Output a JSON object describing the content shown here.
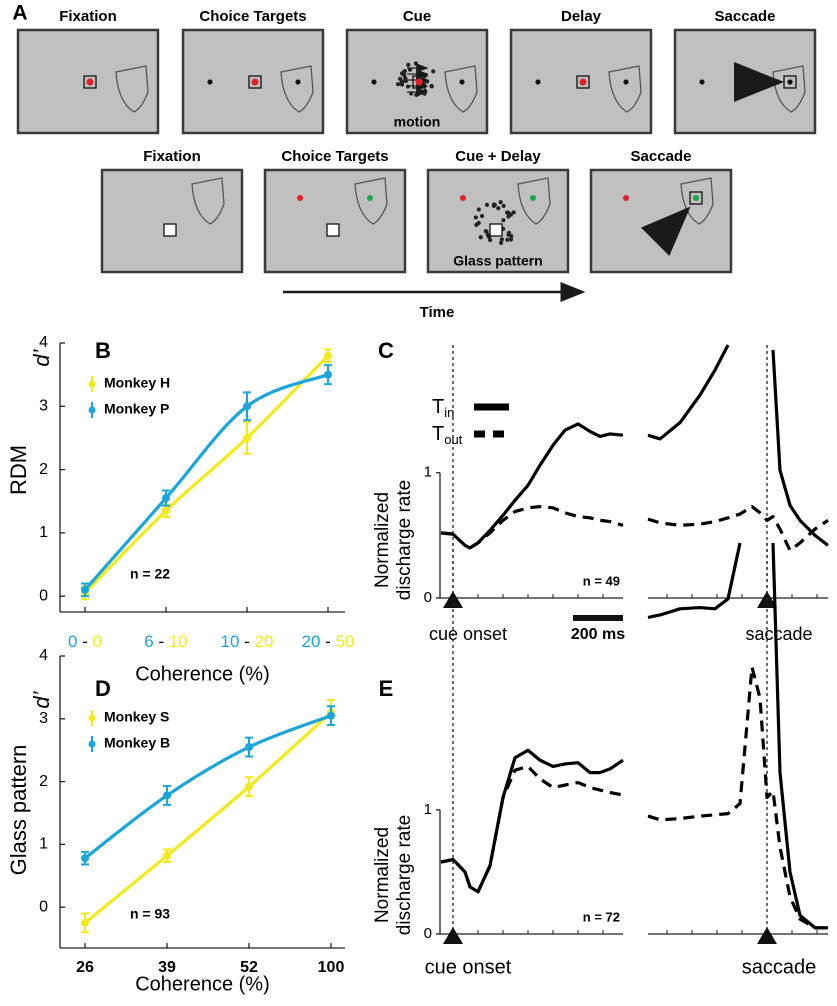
{
  "panel_a": {
    "label": "A",
    "rows": [
      {
        "screens": [
          {
            "title": "Fixation"
          },
          {
            "title": "Choice Targets"
          },
          {
            "title": "Cue",
            "caption": "motion"
          },
          {
            "title": "Delay"
          },
          {
            "title": "Saccade"
          }
        ]
      },
      {
        "screens": [
          {
            "title": "Fixation"
          },
          {
            "title": "Choice Targets"
          },
          {
            "title": "Cue + Delay",
            "caption": "Glass pattern"
          },
          {
            "title": "Saccade"
          }
        ]
      }
    ],
    "time_label": "Time"
  },
  "chart_data": [
    {
      "type": "line",
      "panel": "B",
      "ylabel": "RDM",
      "ylabel_symbol": "d’",
      "xlabel": "Coherence (%)",
      "annotation": "n = 22",
      "category_separator": "-",
      "ylim": [
        -0.25,
        4.0
      ],
      "yticks": [
        0,
        1,
        2,
        3,
        4
      ],
      "series": [
        {
          "name": "Monkey H",
          "color": "#f2ea1f",
          "categories": [
            "0",
            "10",
            "20",
            "50"
          ],
          "values": [
            0.05,
            1.35,
            2.5,
            3.8
          ],
          "errors": [
            0.1,
            0.1,
            0.25,
            0.1
          ]
        },
        {
          "name": "Monkey P",
          "color": "#1ba5dd",
          "categories": [
            "0",
            "6",
            "10",
            "20"
          ],
          "values": [
            0.1,
            1.55,
            3.0,
            3.5
          ],
          "errors": [
            0.1,
            0.12,
            0.22,
            0.15
          ]
        }
      ]
    },
    {
      "type": "trace",
      "panel": "C",
      "ylabel": [
        "Normalized",
        "discharge rate"
      ],
      "annotation": "n = 49",
      "legend": true,
      "ylim": [
        0,
        2.02
      ],
      "yticks": [
        0,
        1
      ],
      "scalebar": {
        "value": 200,
        "label": "200 ms"
      },
      "series": [
        {
          "name": "T",
          "subscript": "in",
          "color": "#000000",
          "dashed": false
        },
        {
          "name": "T",
          "subscript": "out",
          "color": "#000000",
          "dashed": true
        }
      ],
      "segments": [
        {
          "event": "cue onset",
          "xlim": [
            -52,
            680
          ],
          "x": [
            -48,
            0,
            48,
            68,
            100,
            148,
            200,
            248,
            300,
            348,
            400,
            448,
            500,
            548,
            588,
            628,
            680
          ],
          "values": [
            [
              0.52,
              0.51,
              0.42,
              0.4,
              0.44,
              0.54,
              0.66,
              0.78,
              0.9,
              1.06,
              1.22,
              1.34,
              1.39,
              1.33,
              1.29,
              1.31,
              1.3
            ],
            [
              0.52,
              0.51,
              0.42,
              0.4,
              0.44,
              0.52,
              0.62,
              0.69,
              0.72,
              0.73,
              0.72,
              0.68,
              0.65,
              0.64,
              0.62,
              0.61,
              0.58
            ]
          ]
        },
        {
          "event": "saccade",
          "xlim": [
            -476,
            244
          ],
          "x": [
            -476,
            -428,
            -348,
            -268,
            -208,
            -156,
            -108,
            -60,
            -28,
            0,
            24,
            52,
            92,
            132,
            192,
            244
          ],
          "values": [
            [
              1.3,
              1.27,
              1.4,
              1.62,
              1.82,
              2.02,
              null,
              null,
              null,
              null,
              1.98,
              1.02,
              0.74,
              0.62,
              0.5,
              0.42
            ],
            [
              0.63,
              0.6,
              0.58,
              0.59,
              0.61,
              0.64,
              0.67,
              0.73,
              0.68,
              0.62,
              0.65,
              0.55,
              0.38,
              0.44,
              0.55,
              0.62
            ]
          ]
        }
      ]
    },
    {
      "type": "line",
      "panel": "D",
      "ylabel": "Glass pattern",
      "ylabel_symbol": "d’",
      "xlabel": "Coherence (%)",
      "annotation": "n = 93",
      "categories": [
        "26",
        "39",
        "52",
        "100"
      ],
      "ylim": [
        -0.65,
        4.0
      ],
      "yticks": [
        0,
        1,
        2,
        3,
        4
      ],
      "series": [
        {
          "name": "Monkey S",
          "color": "#f2ea1f",
          "values": [
            -0.25,
            0.82,
            1.92,
            3.1
          ],
          "errors": [
            0.15,
            0.1,
            0.15,
            0.2
          ]
        },
        {
          "name": "Monkey B",
          "color": "#1ba5dd",
          "values": [
            0.78,
            1.78,
            2.55,
            3.05
          ],
          "errors": [
            0.1,
            0.15,
            0.15,
            0.15
          ]
        }
      ]
    },
    {
      "type": "trace",
      "panel": "E",
      "ylabel": [
        "Normalized",
        "discharge rate"
      ],
      "annotation": "n = 72",
      "legend": false,
      "ylim": [
        0,
        3.15
      ],
      "yticks": [
        0,
        1
      ],
      "series": [
        {
          "name": "T",
          "subscript": "in",
          "color": "#000000",
          "dashed": false
        },
        {
          "name": "T",
          "subscript": "out",
          "color": "#000000",
          "dashed": true
        }
      ],
      "segments": [
        {
          "event": "cue onset",
          "xlim": [
            -52,
            680
          ],
          "x": [
            -48,
            0,
            48,
            68,
            100,
            148,
            200,
            248,
            300,
            348,
            400,
            448,
            500,
            548,
            588,
            628,
            680
          ],
          "values": [
            [
              0.58,
              0.6,
              0.5,
              0.38,
              0.34,
              0.55,
              1.1,
              1.42,
              1.48,
              1.4,
              1.35,
              1.37,
              1.38,
              1.3,
              1.3,
              1.33,
              1.4
            ],
            [
              0.58,
              0.6,
              0.5,
              0.38,
              0.34,
              0.55,
              1.1,
              1.32,
              1.35,
              1.25,
              1.18,
              1.2,
              1.22,
              1.18,
              1.16,
              1.14,
              1.12
            ]
          ]
        },
        {
          "event": "saccade",
          "xlim": [
            -476,
            244
          ],
          "x": [
            -476,
            -428,
            -348,
            -268,
            -208,
            -156,
            -108,
            -60,
            -28,
            0,
            24,
            52,
            92,
            132,
            192,
            244
          ],
          "values": [
            [
              2.55,
              2.57,
              2.62,
              2.63,
              2.62,
              2.7,
              3.15,
              null,
              null,
              null,
              3.15,
              1.3,
              0.5,
              0.15,
              0.05,
              0.05
            ],
            [
              0.95,
              0.92,
              0.93,
              0.95,
              0.96,
              0.97,
              1.05,
              2.15,
              1.9,
              1.1,
              1.15,
              0.7,
              0.3,
              0.12,
              0.05,
              0.05
            ]
          ]
        }
      ]
    }
  ]
}
